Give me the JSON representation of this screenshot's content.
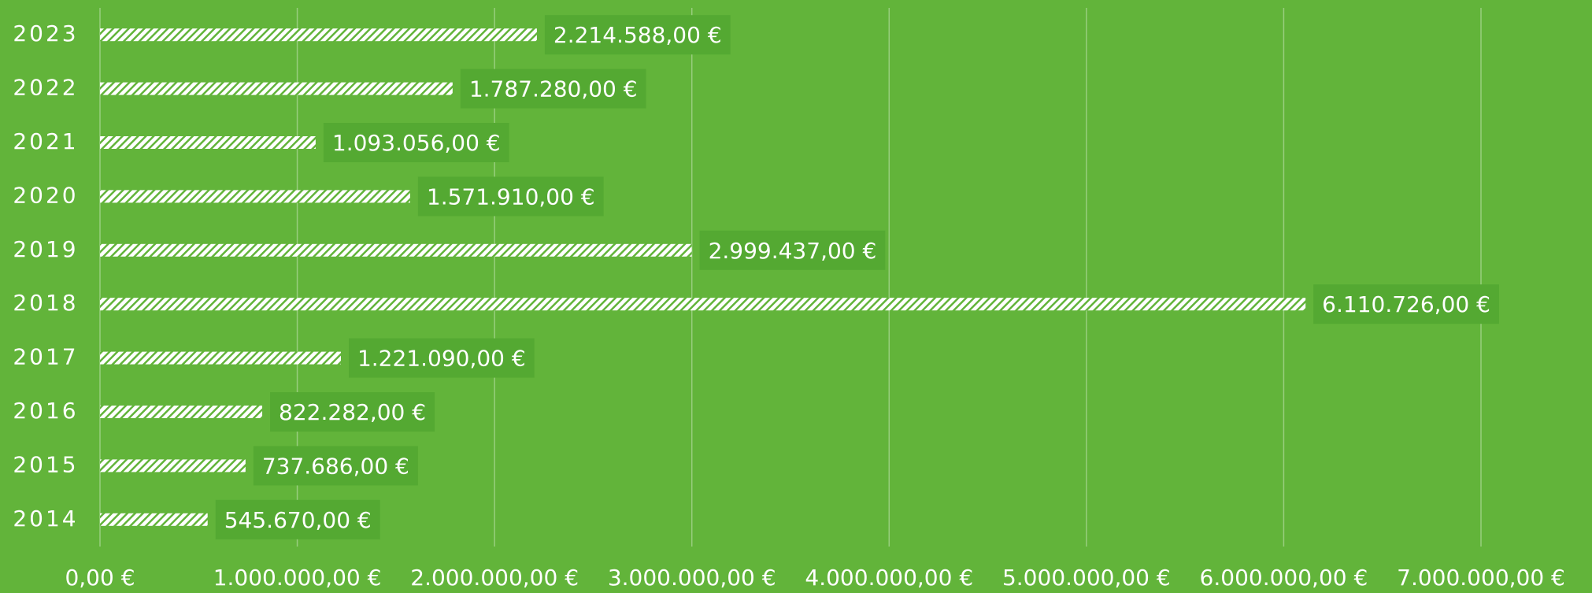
{
  "chart_data": {
    "type": "bar",
    "orientation": "horizontal",
    "categories": [
      "2023",
      "2022",
      "2021",
      "2020",
      "2019",
      "2018",
      "2017",
      "2016",
      "2015",
      "2014"
    ],
    "values": [
      2214588,
      1787280,
      1093056,
      1571910,
      2999437,
      6110726,
      1221090,
      822282,
      737686,
      545670
    ],
    "value_labels": [
      "2.214.588,00 €",
      "1.787.280,00 €",
      "1.093.056,00 €",
      "1.571.910,00 €",
      "2.999.437,00 €",
      "6.110.726,00 €",
      "1.221.090,00 €",
      "822.282,00 €",
      "737.686,00 €",
      "545.670,00 €"
    ],
    "color": "#ffffff",
    "xlim": [
      0,
      7000000
    ],
    "xticks": [
      {
        "value": 0,
        "label": "0,00 €"
      },
      {
        "value": 1000000,
        "label": "1.000.000,00 €"
      },
      {
        "value": 2000000,
        "label": "2.000.000,00 €"
      },
      {
        "value": 3000000,
        "label": "3.000.000,00 €"
      },
      {
        "value": 4000000,
        "label": "4.000.000,00 €"
      },
      {
        "value": 5000000,
        "label": "5.000.000,00 €"
      },
      {
        "value": 6000000,
        "label": "6.000.000,00 €"
      },
      {
        "value": 7000000,
        "label": "7.000.000,00 €"
      }
    ],
    "grid": true
  }
}
